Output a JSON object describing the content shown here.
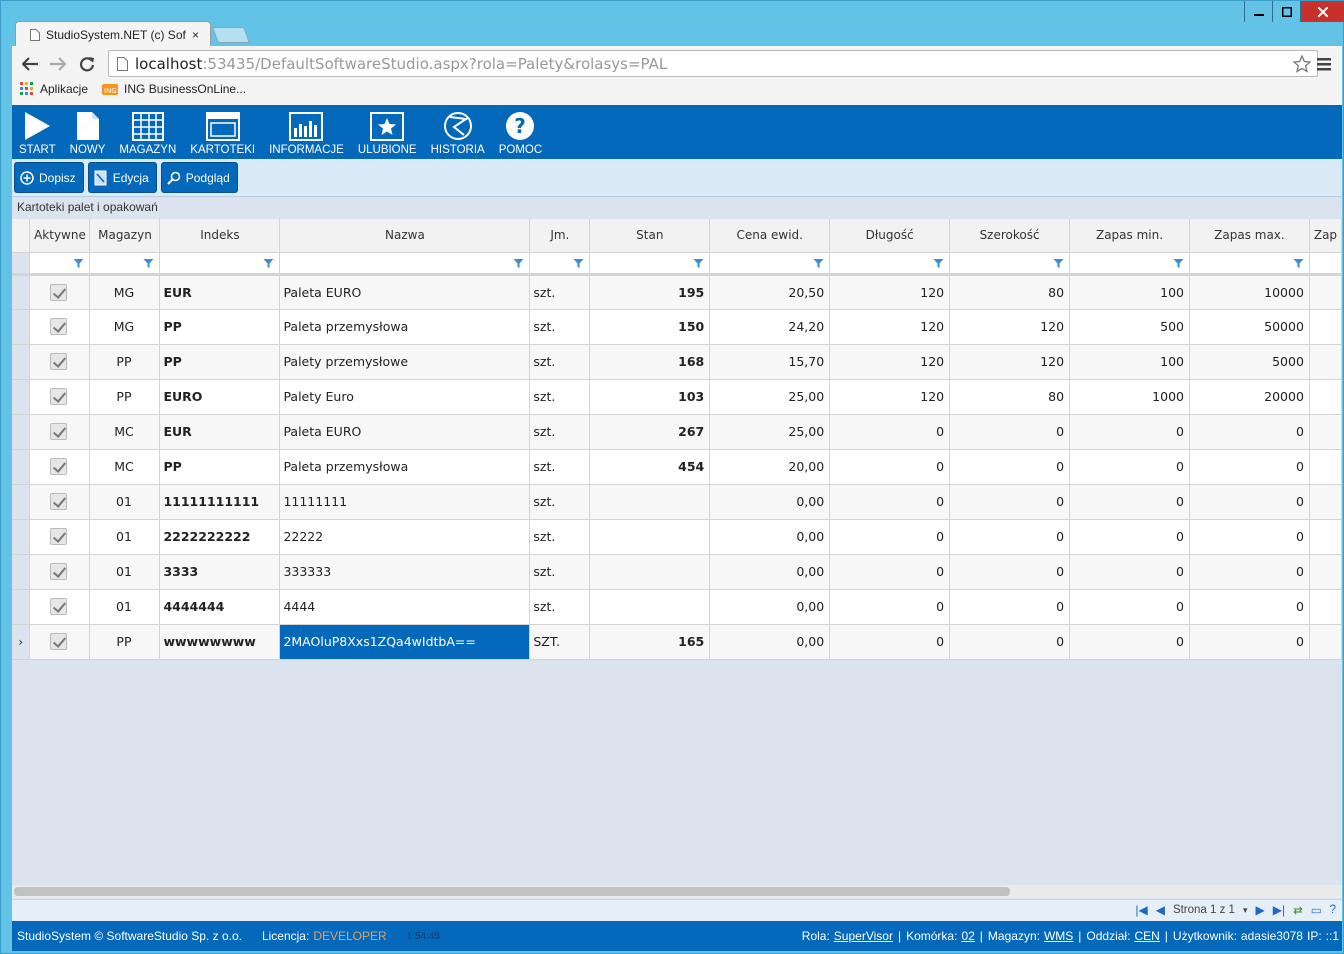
{
  "browser": {
    "tab_title": "StudioSystem.NET (c) Soft",
    "url_host": "localhost",
    "url_rest": ":53435/DefaultSoftwareStudio.aspx?rola=Palety&rolasys=PAL",
    "bookmarks": [
      "Aplikacje",
      "ING BusinessOnLine..."
    ]
  },
  "toolbar": {
    "items": [
      {
        "label": "START",
        "icon": "play-icon"
      },
      {
        "label": "NOWY",
        "icon": "document-icon"
      },
      {
        "label": "MAGAZYN",
        "icon": "warehouse-grid-icon"
      },
      {
        "label": "KARTOTEKI",
        "icon": "window-icon"
      },
      {
        "label": "INFORMACJE",
        "icon": "bar-chart-icon"
      },
      {
        "label": "ULUBIONE",
        "icon": "star-icon"
      },
      {
        "label": "HISTORIA",
        "icon": "history-icon"
      },
      {
        "label": "POMOC",
        "icon": "help-icon"
      }
    ]
  },
  "actions": {
    "add": "Dopisz",
    "edit": "Edycja",
    "preview": "Podgląd"
  },
  "caption": "Kartoteki palet i opakowań",
  "grid": {
    "columns": [
      "Aktywne",
      "Magazyn",
      "Indeks",
      "Nazwa",
      "Jm.",
      "Stan",
      "Cena ewid.",
      "Długość",
      "Szerokość",
      "Zapas min.",
      "Zapas max.",
      "Zap"
    ],
    "rows": [
      {
        "magazyn": "MG",
        "indeks": "EUR",
        "nazwa": "Paleta EURO",
        "jm": "szt.",
        "stan": "195",
        "cena": "20,50",
        "dlugosc": "120",
        "szerokosc": "80",
        "zmin": "100",
        "zmax": "10000"
      },
      {
        "magazyn": "MG",
        "indeks": "PP",
        "nazwa": "Paleta przemysłowa",
        "jm": "szt.",
        "stan": "150",
        "cena": "24,20",
        "dlugosc": "120",
        "szerokosc": "120",
        "zmin": "500",
        "zmax": "50000"
      },
      {
        "magazyn": "PP",
        "indeks": "PP",
        "nazwa": "Palety przemysłowe",
        "jm": "szt.",
        "stan": "168",
        "cena": "15,70",
        "dlugosc": "120",
        "szerokosc": "120",
        "zmin": "100",
        "zmax": "5000"
      },
      {
        "magazyn": "PP",
        "indeks": "EURO",
        "nazwa": "Palety Euro",
        "jm": "szt.",
        "stan": "103",
        "cena": "25,00",
        "dlugosc": "120",
        "szerokosc": "80",
        "zmin": "1000",
        "zmax": "20000"
      },
      {
        "magazyn": "MC",
        "indeks": "EUR",
        "nazwa": "Paleta EURO",
        "jm": "szt.",
        "stan": "267",
        "cena": "25,00",
        "dlugosc": "0",
        "szerokosc": "0",
        "zmin": "0",
        "zmax": "0"
      },
      {
        "magazyn": "MC",
        "indeks": "PP",
        "nazwa": "Paleta przemysłowa",
        "jm": "szt.",
        "stan": "454",
        "cena": "20,00",
        "dlugosc": "0",
        "szerokosc": "0",
        "zmin": "0",
        "zmax": "0"
      },
      {
        "magazyn": "01",
        "indeks": "11111111111",
        "nazwa": "11111111",
        "jm": "szt.",
        "stan": "",
        "cena": "0,00",
        "dlugosc": "0",
        "szerokosc": "0",
        "zmin": "0",
        "zmax": "0"
      },
      {
        "magazyn": "01",
        "indeks": "2222222222",
        "nazwa": "22222",
        "jm": "szt.",
        "stan": "",
        "cena": "0,00",
        "dlugosc": "0",
        "szerokosc": "0",
        "zmin": "0",
        "zmax": "0"
      },
      {
        "magazyn": "01",
        "indeks": "3333",
        "nazwa": "333333",
        "jm": "szt.",
        "stan": "",
        "cena": "0,00",
        "dlugosc": "0",
        "szerokosc": "0",
        "zmin": "0",
        "zmax": "0"
      },
      {
        "magazyn": "01",
        "indeks": "4444444",
        "nazwa": "4444",
        "jm": "szt.",
        "stan": "",
        "cena": "0,00",
        "dlugosc": "0",
        "szerokosc": "0",
        "zmin": "0",
        "zmax": "0"
      },
      {
        "magazyn": "PP",
        "indeks": "wwwwwwww",
        "nazwa": "2MAOluP8Xxs1ZQa4wIdtbA==",
        "jm": "SZT.",
        "stan": "165",
        "cena": "0,00",
        "dlugosc": "0",
        "szerokosc": "0",
        "zmin": "0",
        "zmax": "0",
        "selected": true
      }
    ]
  },
  "pager": {
    "text": "Strona 1 z 1"
  },
  "footer": {
    "copyright": "StudioSystem © SoftwareStudio Sp. z o.o.",
    "license_label": "Licencja:",
    "license_value": "DEVELOPER",
    "time": "1:54:45",
    "rola_label": "Rola:",
    "rola_value": "SuperVisor",
    "komorka_label": "Komórka:",
    "komorka_value": "02",
    "magazyn_label": "Magazyn:",
    "magazyn_value": "WMS",
    "oddzial_label": "Oddział:",
    "oddzial_value": "CEN",
    "user_label": "Użytkownik:",
    "user_value": "adasie3078",
    "ip_label": "IP:",
    "ip_value": "::1"
  },
  "colors": {
    "brand_blue": "#0469bb",
    "license_orange": "#f0a050"
  }
}
